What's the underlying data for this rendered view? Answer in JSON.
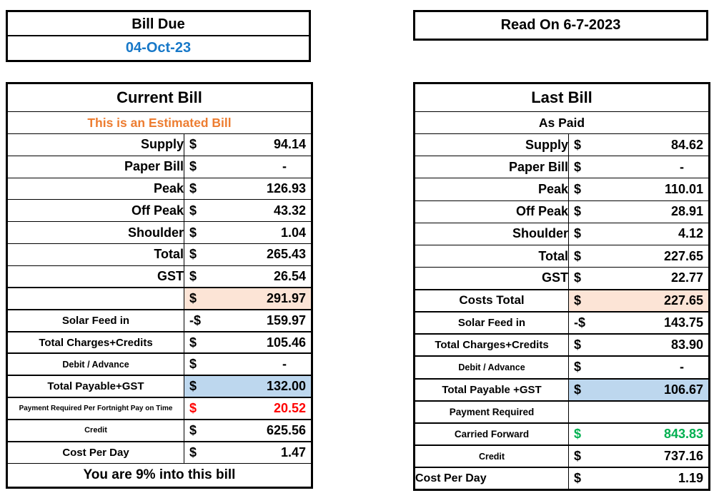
{
  "palette": {
    "date_blue": "#1778C8",
    "estimate_orange": "#ED7D31",
    "alert_red": "#FF0000",
    "credit_green": "#00B050",
    "subtotal_fill": "#FCE4D6",
    "total_fill": "#BDD7EE"
  },
  "bill_due": {
    "title": "Bill Due",
    "date": "04-Oct-23"
  },
  "read_on": {
    "title": "Read On 6-7-2023"
  },
  "current_bill": {
    "title": "Current Bill",
    "subtitle": "This is an Estimated Bill",
    "rows": [
      {
        "label": "Supply",
        "currency": "$",
        "amount": "94.14",
        "label_size": "lg",
        "label_align": "right"
      },
      {
        "label": "Paper Bill",
        "currency": "$",
        "amount": "-",
        "label_size": "lg",
        "label_align": "right"
      },
      {
        "label": "Peak",
        "currency": "$",
        "amount": "126.93",
        "label_size": "lg",
        "label_align": "right"
      },
      {
        "label": "Off Peak",
        "currency": "$",
        "amount": "43.32",
        "label_size": "lg",
        "label_align": "right"
      },
      {
        "label": "Shoulder",
        "currency": "$",
        "amount": "1.04",
        "label_size": "lg",
        "label_align": "right"
      },
      {
        "label": "Total",
        "currency": "$",
        "amount": "265.43",
        "label_size": "lg",
        "label_align": "right"
      },
      {
        "label": "GST",
        "currency": "$",
        "amount": "26.54",
        "label_size": "lg",
        "label_align": "right"
      },
      {
        "label": "",
        "currency": "$",
        "amount": "291.97",
        "fill": "peach",
        "label_size": "lg",
        "label_align": "right"
      },
      {
        "label": "Solar Feed in",
        "currency": "-$",
        "amount": "159.97",
        "label_size": "md",
        "label_align": "center"
      },
      {
        "label": "Total Charges+Credits",
        "currency": "$",
        "amount": "105.46",
        "label_size": "md",
        "label_align": "center"
      },
      {
        "label": "Debit / Advance",
        "currency": "$",
        "amount": "-",
        "label_size": "sm",
        "label_align": "center"
      },
      {
        "label": "Total Payable+GST",
        "currency": "$",
        "amount": "132.00",
        "fill": "blue",
        "label_size": "md",
        "label_align": "center"
      },
      {
        "label": "Payment Required Per Fortnight Pay on Time",
        "currency": "$",
        "amount": "20.52",
        "value_color": "red",
        "label_size": "xs",
        "label_align": "center"
      },
      {
        "label": "Credit",
        "currency": "$",
        "amount": "625.56",
        "label_size": "xxs",
        "label_align": "center"
      },
      {
        "label": "Cost Per Day",
        "currency": "$",
        "amount": "1.47",
        "label_size": "md",
        "label_align": "center"
      }
    ],
    "footer": "You are 9% into this bill"
  },
  "last_bill": {
    "title": "Last Bill",
    "subtitle": "As Paid",
    "rows": [
      {
        "label": "Supply",
        "currency": "$",
        "amount": "84.62",
        "label_size": "lg",
        "label_align": "right"
      },
      {
        "label": "Paper Bill",
        "currency": "$",
        "amount": "-",
        "label_size": "lg",
        "label_align": "right"
      },
      {
        "label": "Peak",
        "currency": "$",
        "amount": "110.01",
        "label_size": "lg",
        "label_align": "right"
      },
      {
        "label": "Off Peak",
        "currency": "$",
        "amount": "28.91",
        "label_size": "lg",
        "label_align": "right"
      },
      {
        "label": "Shoulder",
        "currency": "$",
        "amount": "4.12",
        "label_size": "lg",
        "label_align": "right"
      },
      {
        "label": "Total",
        "currency": "$",
        "amount": "227.65",
        "label_size": "lg",
        "label_align": "right"
      },
      {
        "label": "GST",
        "currency": "$",
        "amount": "22.77",
        "label_size": "lg",
        "label_align": "right"
      },
      {
        "label": "Costs Total",
        "currency": "$",
        "amount": "227.65",
        "fill": "peach",
        "label_size": "lg2",
        "label_align": "center"
      },
      {
        "label": "Solar Feed in",
        "currency": "-$",
        "amount": "143.75",
        "label_size": "md",
        "label_align": "center"
      },
      {
        "label": "Total Charges+Credits",
        "currency": "$",
        "amount": "83.90",
        "label_size": "md",
        "label_align": "center"
      },
      {
        "label": "Debit / Advance",
        "currency": "$",
        "amount": "-",
        "label_size": "sm",
        "label_align": "center"
      },
      {
        "label": "Total Payable +GST",
        "currency": "$",
        "amount": "106.67",
        "fill": "blue",
        "label_size": "md",
        "label_align": "center"
      },
      {
        "label": "Payment Required",
        "currency": "",
        "amount": "",
        "label_size": "sm2",
        "label_align": "center"
      },
      {
        "label": "Carried Forward",
        "currency": "$",
        "amount": "843.83",
        "value_color": "green",
        "label_size": "sm2",
        "label_align": "center"
      },
      {
        "label": "Credit",
        "currency": "$",
        "amount": "737.16",
        "label_size": "sm",
        "label_align": "center"
      },
      {
        "label": "Cost Per Day",
        "currency": "$",
        "amount": "1.19",
        "label_size": "md2",
        "label_align": "left"
      }
    ]
  }
}
